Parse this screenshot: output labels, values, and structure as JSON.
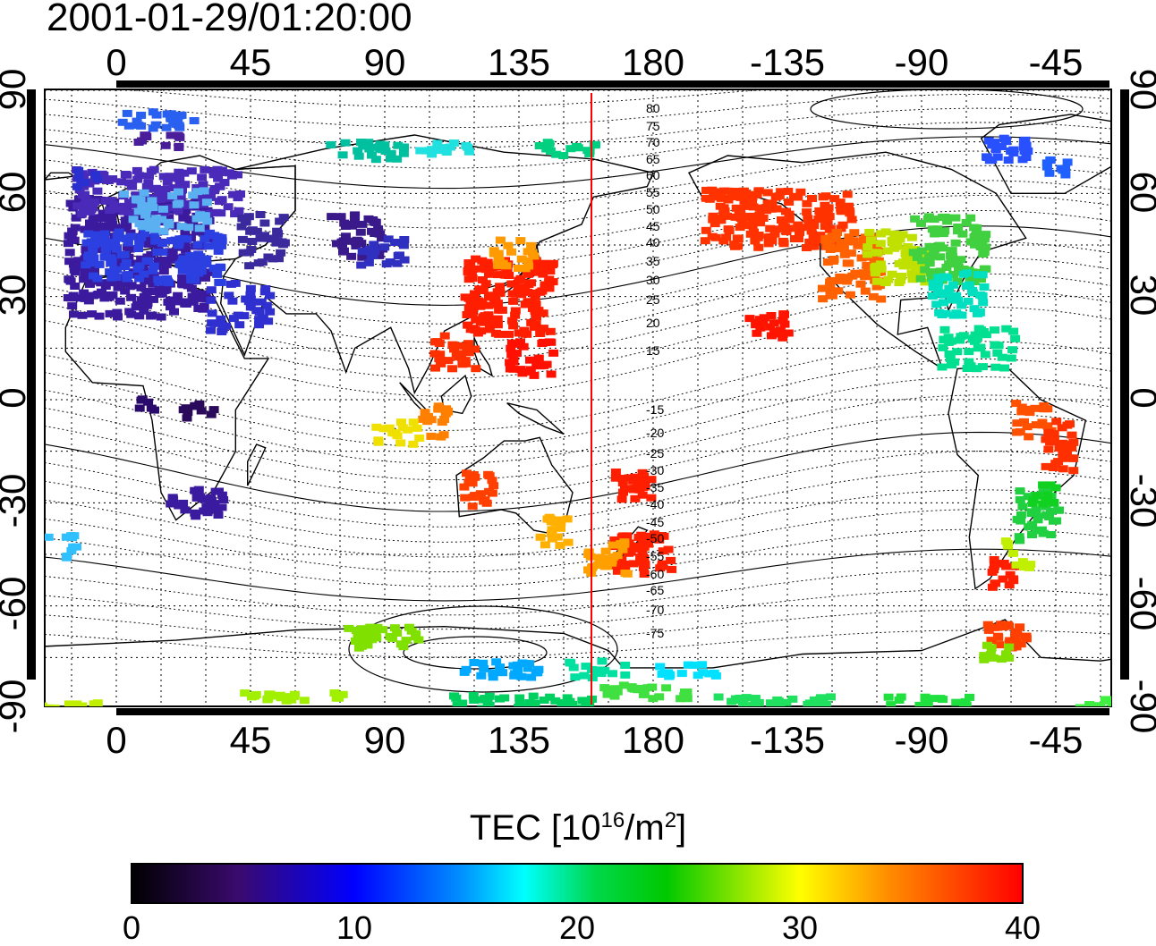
{
  "title": "2001-01-29/01:20:00",
  "map": {
    "top_lon_ticks": [
      "0",
      "45",
      "90",
      "135",
      "180",
      "-135",
      "-90",
      "-45"
    ],
    "bottom_lon_ticks": [
      "0",
      "45",
      "90",
      "135",
      "180",
      "-135",
      "-90",
      "-45"
    ],
    "left_lat_ticks": [
      "90",
      "60",
      "30",
      "0",
      "-30",
      "-60",
      "-90"
    ],
    "right_lat_ticks": [
      "90",
      "60",
      "30",
      "0",
      "-30",
      "-60",
      "-90"
    ],
    "contour_labels_north": [
      "80",
      "75",
      "70",
      "65",
      "60",
      "55",
      "50",
      "45",
      "40",
      "35",
      "30",
      "25",
      "20",
      "15"
    ],
    "contour_labels_south": [
      "-15",
      "-20",
      "-25",
      "-30",
      "-35",
      "-40",
      "-45",
      "-50",
      "-55",
      "-60",
      "-65",
      "-70",
      "-75"
    ],
    "reference_line_color": "#ff0000"
  },
  "colorbar": {
    "title_prefix": "TEC  [10",
    "title_exp": "16",
    "title_mid": "/m",
    "title_exp2": "2",
    "title_suffix": "]",
    "ticks": [
      "0",
      "10",
      "20",
      "30",
      "40"
    ],
    "range": [
      0,
      40
    ],
    "colors": [
      "#000000",
      "#3a0a6e",
      "#0000ff",
      "#00ffff",
      "#00c800",
      "#ffff00",
      "#ff8c00",
      "#ff0000"
    ]
  }
}
